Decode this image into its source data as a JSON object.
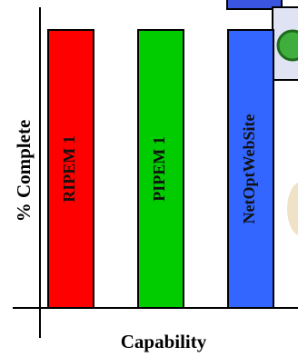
{
  "chart_data": {
    "type": "bar",
    "title": "",
    "xlabel": "Capability",
    "ylabel": "% Complete",
    "categories": [
      "RIPEM 1",
      "PIPEM 1",
      "NetOptWebSite"
    ],
    "values": [
      100,
      100,
      100
    ],
    "ylim": [
      0,
      100
    ],
    "grid": false,
    "legend": "none",
    "colors": [
      "#ff0000",
      "#00cc00",
      "#3366ff"
    ]
  }
}
